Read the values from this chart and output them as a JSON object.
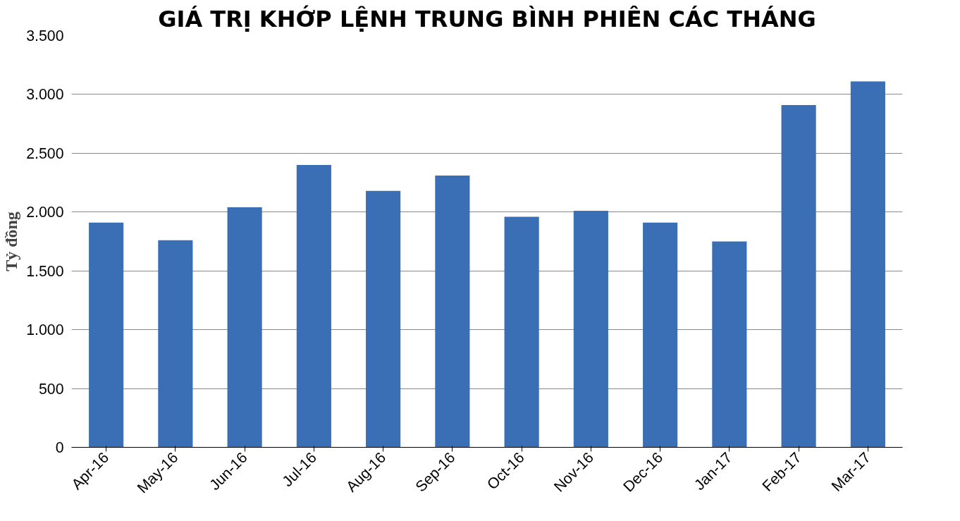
{
  "chart_data": {
    "type": "bar",
    "title": "GIÁ TRỊ KHỚP LỆNH TRUNG BÌNH PHIÊN CÁC THÁNG",
    "ylabel": "Tỷ đồng",
    "categories": [
      "Apr-16",
      "May-16",
      "Jun-16",
      "Jul-16",
      "Aug-16",
      "Sep-16",
      "Oct-16",
      "Nov-16",
      "Dec-16",
      "Jan-17",
      "Feb-17",
      "Mar-17"
    ],
    "values": [
      1910,
      1760,
      2040,
      2400,
      2180,
      2310,
      1960,
      2010,
      1910,
      1750,
      2910,
      3110
    ],
    "color": "#3a6fb5",
    "ylim": [
      0,
      3500
    ],
    "yticks": [
      0,
      {
        "value": 500,
        "label": "500"
      },
      {
        "value": 1000,
        "label": "1.000"
      },
      {
        "value": 1500,
        "label": "1.500"
      },
      {
        "value": 2000,
        "label": "2.000"
      },
      {
        "value": 2500,
        "label": "2.500"
      },
      {
        "value": 3000,
        "label": "3.000"
      },
      {
        "value": 3500,
        "label": "3.500"
      }
    ],
    "grid": "y"
  }
}
